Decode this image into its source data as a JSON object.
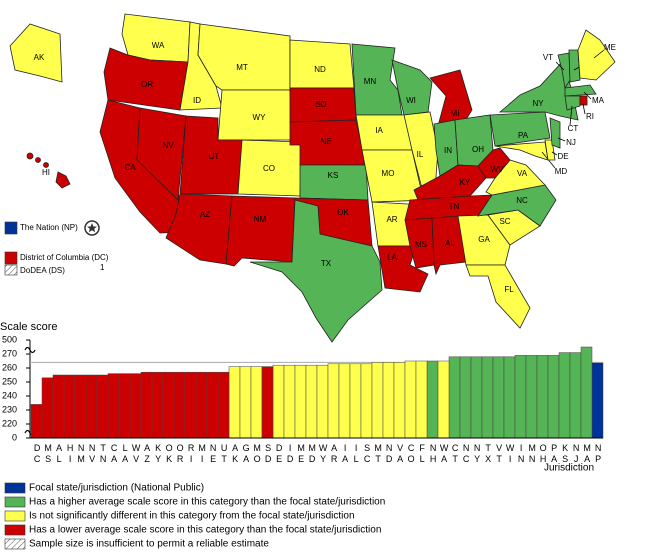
{
  "chart_data": {
    "type": "bar",
    "y_label": "Scale score",
    "x_label": "Jurisdiction",
    "categories": [
      "DC",
      "MS",
      "AL",
      "HI",
      "NM",
      "NV",
      "TN",
      "CA",
      "LA",
      "WV",
      "AZ",
      "KY",
      "OK",
      "OR",
      "RI",
      "MI",
      "NE",
      "UT",
      "AK",
      "GA",
      "MO",
      "SD",
      "DE",
      "ID",
      "ME",
      "MD",
      "WY",
      "AR",
      "IA",
      "IL",
      "SC",
      "MT",
      "ND",
      "VA",
      "CO",
      "FL",
      "NH",
      "WA",
      "CT",
      "NC",
      "NY",
      "TX",
      "VT",
      "WI",
      "IN",
      "MN",
      "OH",
      "PA",
      "KS",
      "NJ",
      "MA",
      "NP"
    ],
    "series": [
      {
        "name": "Focal state/jurisdiction (National Public)",
        "color": "#003399",
        "reference_line": true,
        "values": [
          null,
          null,
          null,
          null,
          null,
          null,
          null,
          null,
          null,
          null,
          null,
          null,
          null,
          null,
          null,
          null,
          null,
          null,
          null,
          null,
          null,
          null,
          null,
          null,
          null,
          null,
          null,
          null,
          null,
          null,
          null,
          null,
          null,
          null,
          null,
          null,
          null,
          null,
          null,
          null,
          null,
          null,
          null,
          null,
          null,
          null,
          null,
          null,
          null,
          null,
          null,
          264
        ]
      },
      {
        "name": "Has a higher average scale score in this category than the focal state/jurisdiction",
        "color": "#55b455",
        "values": [
          null,
          null,
          null,
          null,
          null,
          null,
          null,
          null,
          null,
          null,
          null,
          null,
          null,
          null,
          null,
          null,
          null,
          null,
          null,
          null,
          null,
          null,
          null,
          null,
          null,
          null,
          null,
          null,
          null,
          null,
          null,
          null,
          null,
          null,
          null,
          null,
          265,
          null,
          268,
          268,
          268,
          268,
          268,
          268,
          269,
          269,
          269,
          269,
          271,
          271,
          275,
          null
        ]
      },
      {
        "name": "Is not significantly different in this category from the focal state/jurisdiction",
        "color": "#ffff4d",
        "values": [
          null,
          null,
          null,
          null,
          null,
          null,
          null,
          null,
          null,
          null,
          null,
          null,
          null,
          null,
          null,
          null,
          null,
          null,
          261,
          261,
          261,
          null,
          262,
          262,
          262,
          262,
          262,
          263,
          263,
          263,
          263,
          264,
          264,
          264,
          265,
          265,
          null,
          265,
          null,
          null,
          null,
          null,
          null,
          null,
          null,
          null,
          null,
          null,
          null,
          null,
          null,
          null
        ]
      },
      {
        "name": "Has a lower average scale score in this category than the focal state/jurisdiction",
        "color": "#cc0000",
        "values": [
          234,
          253,
          255,
          255,
          255,
          255,
          255,
          256,
          256,
          256,
          257,
          257,
          257,
          257,
          257,
          257,
          257,
          257,
          null,
          null,
          null,
          261,
          null,
          null,
          null,
          null,
          null,
          null,
          null,
          null,
          null,
          null,
          null,
          null,
          null,
          null,
          null,
          null,
          null,
          null,
          null,
          null,
          null,
          null,
          null,
          null,
          null,
          null,
          null,
          null,
          null,
          null
        ]
      }
    ],
    "no_data_key": {
      "name": "Sample size is insufficient to permit a reliable estimate",
      "pattern": "hatch"
    },
    "ylim": [
      210,
      280
    ],
    "yticks": [
      0,
      220,
      230,
      240,
      250,
      260,
      270,
      500
    ],
    "axis_break": true
  },
  "map": {
    "states": [
      "WA",
      "OR",
      "CA",
      "NV",
      "ID",
      "MT",
      "WY",
      "UT",
      "AZ",
      "CO",
      "NM",
      "ND",
      "SD",
      "NE",
      "KS",
      "OK",
      "TX",
      "MN",
      "IA",
      "MO",
      "AR",
      "LA",
      "WI",
      "IL",
      "MI",
      "IN",
      "OH",
      "KY",
      "TN",
      "MS",
      "AL",
      "GA",
      "FL",
      "SC",
      "NC",
      "VA",
      "WV",
      "PA",
      "NY",
      "MD",
      "DE",
      "NJ",
      "VT",
      "NH",
      "ME",
      "MA",
      "CT",
      "RI",
      "AK",
      "HI"
    ],
    "side_legend": [
      {
        "label": "The Nation (NP)",
        "code": "NP"
      },
      {
        "label": "District of Columbia (DC)",
        "code": "DC"
      },
      {
        "label": "DoDEA (DS)",
        "note": "1",
        "pattern": "hatch"
      }
    ]
  }
}
